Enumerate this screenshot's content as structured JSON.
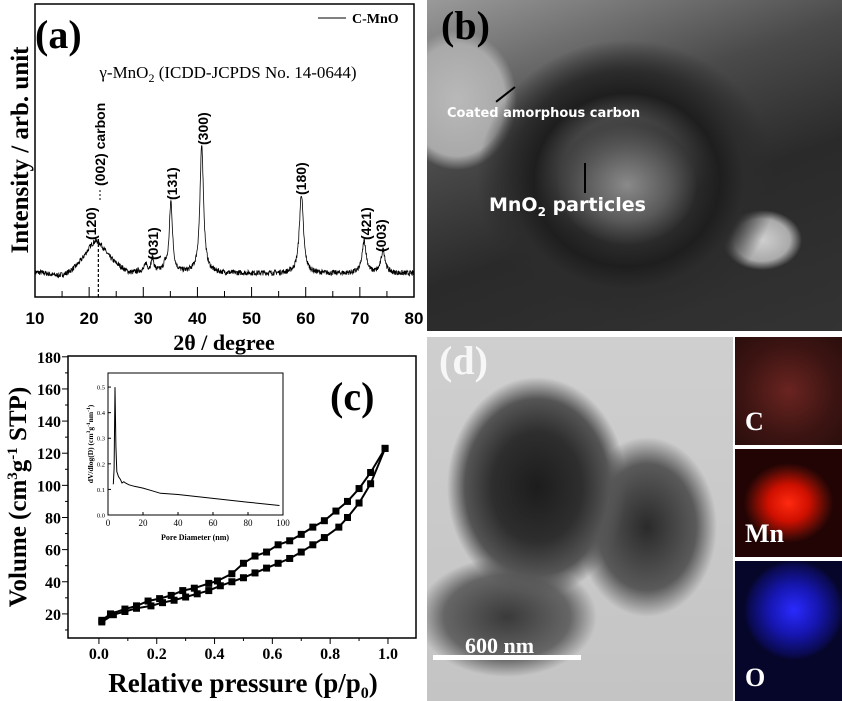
{
  "panels": {
    "a": {
      "label": "(a)"
    },
    "b": {
      "label": "(b)",
      "annotations": {
        "carbon": "Coated amorphous carbon",
        "particles_main": "MnO",
        "particles_sub": "2",
        "particles_rest": " particles"
      }
    },
    "c": {
      "label": "(c)"
    },
    "d": {
      "label": "(d)",
      "scale_bar": "600 nm",
      "maps": [
        {
          "element": "C",
          "color": "#d03a2a"
        },
        {
          "element": "Mn",
          "color": "#ff1a00"
        },
        {
          "element": "O",
          "color": "#1a1aff"
        }
      ]
    }
  },
  "chart_data": [
    {
      "id": "xrd",
      "type": "line",
      "xlabel": "2θ / degree",
      "ylabel": "Intensity / arb. unit",
      "xlim": [
        10,
        80
      ],
      "xticks": [
        "10",
        "20",
        "30",
        "40",
        "50",
        "60",
        "70",
        "80"
      ],
      "ylim": [
        0,
        1
      ],
      "y_ticks_shown": false,
      "legend": {
        "position": "top-right",
        "entries": [
          "C-MnO"
        ]
      },
      "annotation_title": {
        "main": "γ-MnO",
        "sub": "2",
        "rest": " (ICDD-JCPDS No. 14-0644)"
      },
      "baseline": 0.08,
      "peaks": [
        {
          "x": 21.3,
          "height": 0.11,
          "width": 2.6
        },
        {
          "x": 30.5,
          "height": 0.025,
          "width": 0.25
        },
        {
          "x": 31.7,
          "height": 0.045,
          "width": 0.3
        },
        {
          "x": 34.0,
          "height": 0.02,
          "width": 0.3
        },
        {
          "x": 35.1,
          "height": 0.24,
          "width": 0.35
        },
        {
          "x": 40.8,
          "height": 0.435,
          "width": 0.4
        },
        {
          "x": 59.2,
          "height": 0.27,
          "width": 0.45
        },
        {
          "x": 70.8,
          "height": 0.11,
          "width": 0.45
        },
        {
          "x": 74.3,
          "height": 0.08,
          "width": 0.45
        }
      ],
      "reference_line": {
        "x": 21.7,
        "style": "dashed",
        "label": "(002) carbon"
      },
      "peak_labels": [
        {
          "text": "(120)",
          "x": 21.3
        },
        {
          "text": "(031)",
          "x": 31.7
        },
        {
          "text": "(131)",
          "x": 35.1
        },
        {
          "text": "(300)",
          "x": 40.8
        },
        {
          "text": "(180)",
          "x": 59.2
        },
        {
          "text": "(421)",
          "x": 70.8
        },
        {
          "text": "(003)",
          "x": 74.3
        }
      ]
    },
    {
      "id": "isotherm",
      "type": "line",
      "xlabel": "Relative pressure (p/p0)",
      "xlabel_parts": {
        "main": "Relative pressure (p/p",
        "sub": "0",
        "end": ")"
      },
      "ylabel_parts": {
        "a": "Volume (cm",
        "sup1": "3",
        "b": "g",
        "sup2": "-1",
        "c": " STP)"
      },
      "xlim": [
        -0.107,
        1.097
      ],
      "ylim": [
        5,
        180.5
      ],
      "xticks": [
        "0.0",
        "0.2",
        "0.4",
        "0.6",
        "0.8",
        "1.0"
      ],
      "yticks": [
        "20",
        "40",
        "60",
        "80",
        "100",
        "120",
        "140",
        "160",
        "180"
      ],
      "marker": "square",
      "series": [
        {
          "points": [
            [
              0.01,
              15
            ],
            [
              0.05,
              19.5
            ],
            [
              0.09,
              21.5
            ],
            [
              0.13,
              23.5
            ],
            [
              0.18,
              25
            ],
            [
              0.22,
              27
            ],
            [
              0.26,
              28.5
            ],
            [
              0.3,
              30.5
            ],
            [
              0.34,
              32.5
            ],
            [
              0.38,
              34.5
            ],
            [
              0.42,
              37.5
            ],
            [
              0.46,
              40
            ],
            [
              0.5,
              42.5
            ],
            [
              0.54,
              45.5
            ],
            [
              0.58,
              48.5
            ],
            [
              0.62,
              51.5
            ],
            [
              0.66,
              54.5
            ],
            [
              0.7,
              58.5
            ],
            [
              0.74,
              63
            ],
            [
              0.78,
              67.5
            ],
            [
              0.83,
              74
            ],
            [
              0.86,
              80
            ],
            [
              0.9,
              89
            ],
            [
              0.94,
              101
            ],
            [
              0.99,
              123
            ]
          ]
        },
        {
          "points": [
            [
              0.99,
              123
            ],
            [
              0.94,
              108
            ],
            [
              0.9,
              98
            ],
            [
              0.86,
              90
            ],
            [
              0.82,
              84
            ],
            [
              0.78,
              78
            ],
            [
              0.74,
              74
            ],
            [
              0.7,
              69.5
            ],
            [
              0.66,
              65.5
            ],
            [
              0.62,
              63
            ],
            [
              0.58,
              58.5
            ],
            [
              0.54,
              56
            ],
            [
              0.5,
              51.5
            ],
            [
              0.46,
              45
            ],
            [
              0.41,
              40.5
            ],
            [
              0.38,
              39
            ],
            [
              0.33,
              36
            ],
            [
              0.29,
              34.5
            ],
            [
              0.25,
              31.5
            ],
            [
              0.21,
              29.5
            ],
            [
              0.17,
              28
            ],
            [
              0.13,
              25
            ],
            [
              0.09,
              23
            ],
            [
              0.04,
              20
            ],
            [
              0.01,
              16
            ]
          ]
        }
      ]
    },
    {
      "id": "pore-inset",
      "type": "line",
      "xlabel": "Pore Diameter (nm)",
      "ylabel": "dV/dlog(D) (cm3g-1nm-1)",
      "ylabel_parts": {
        "a": "dV/dlog(D) (cm",
        "sup1": "3",
        "b": "g",
        "sup2": "-1",
        "c": "nm",
        "sup3": "-1",
        "d": ")"
      },
      "xlim": [
        0,
        100
      ],
      "ylim": [
        0,
        0.555
      ],
      "xticks": [
        "0",
        "20",
        "40",
        "60",
        "80",
        "100"
      ],
      "yticks": [
        "0.0",
        "0.1",
        "0.2",
        "0.3",
        "0.4",
        "0.5"
      ],
      "points": [
        [
          3,
          0.12
        ],
        [
          3.5,
          0.18
        ],
        [
          4,
          0.5
        ],
        [
          4.5,
          0.27
        ],
        [
          5,
          0.17
        ],
        [
          6,
          0.15
        ],
        [
          7,
          0.14
        ],
        [
          8,
          0.125
        ],
        [
          9,
          0.13
        ],
        [
          10,
          0.125
        ],
        [
          12,
          0.118
        ],
        [
          15,
          0.112
        ],
        [
          20,
          0.105
        ],
        [
          25,
          0.095
        ],
        [
          30,
          0.085
        ],
        [
          40,
          0.08
        ],
        [
          60,
          0.065
        ],
        [
          80,
          0.05
        ],
        [
          98,
          0.037
        ]
      ]
    }
  ]
}
